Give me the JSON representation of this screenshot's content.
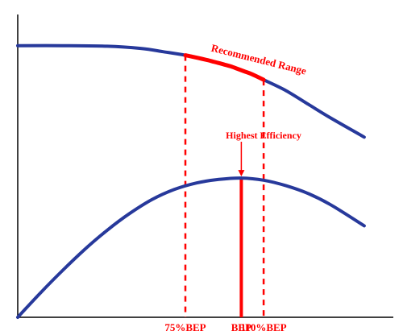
{
  "colors": {
    "curve": "#27399b",
    "accent": "#ff0000",
    "axis": "#000000"
  },
  "chart_data": {
    "type": "line",
    "title": "",
    "xlabel": "",
    "ylabel": "",
    "xlim": [
      0,
      1.68
    ],
    "ylim": [
      0,
      1
    ],
    "grid": false,
    "legend": "none",
    "axis_ticks": [
      {
        "x": 0.75,
        "label": "75%BEP",
        "style": "dashed"
      },
      {
        "x": 1.0,
        "label": "BEP",
        "style": "solid"
      },
      {
        "x": 1.1,
        "label": "110%BEP",
        "style": "dashed"
      }
    ],
    "series": [
      {
        "x": [
          0,
          0.2,
          0.4,
          0.55,
          0.65,
          0.75,
          0.85,
          0.95,
          1.05,
          1.1,
          1.2,
          1.3,
          1.4,
          1.55
        ],
        "values": [
          0.995,
          0.995,
          0.993,
          0.985,
          0.973,
          0.96,
          0.942,
          0.92,
          0.89,
          0.87,
          0.83,
          0.78,
          0.73,
          0.66
        ]
      },
      {
        "x": [
          0,
          0.1,
          0.2,
          0.3,
          0.4,
          0.5,
          0.6,
          0.7,
          0.8,
          0.9,
          1.0,
          1.1,
          1.2,
          1.3,
          1.4,
          1.55
        ],
        "values": [
          0,
          0.088,
          0.171,
          0.249,
          0.319,
          0.38,
          0.431,
          0.468,
          0.492,
          0.505,
          0.51,
          0.502,
          0.482,
          0.453,
          0.412,
          0.335
        ]
      }
    ],
    "annotations": [
      {
        "text": "Recommended Range",
        "series": 0,
        "x_range": [
          0.75,
          1.1
        ]
      },
      {
        "text": "Highest Efficiency",
        "x": 1.0,
        "y": 0.51,
        "arrow": true
      }
    ]
  }
}
